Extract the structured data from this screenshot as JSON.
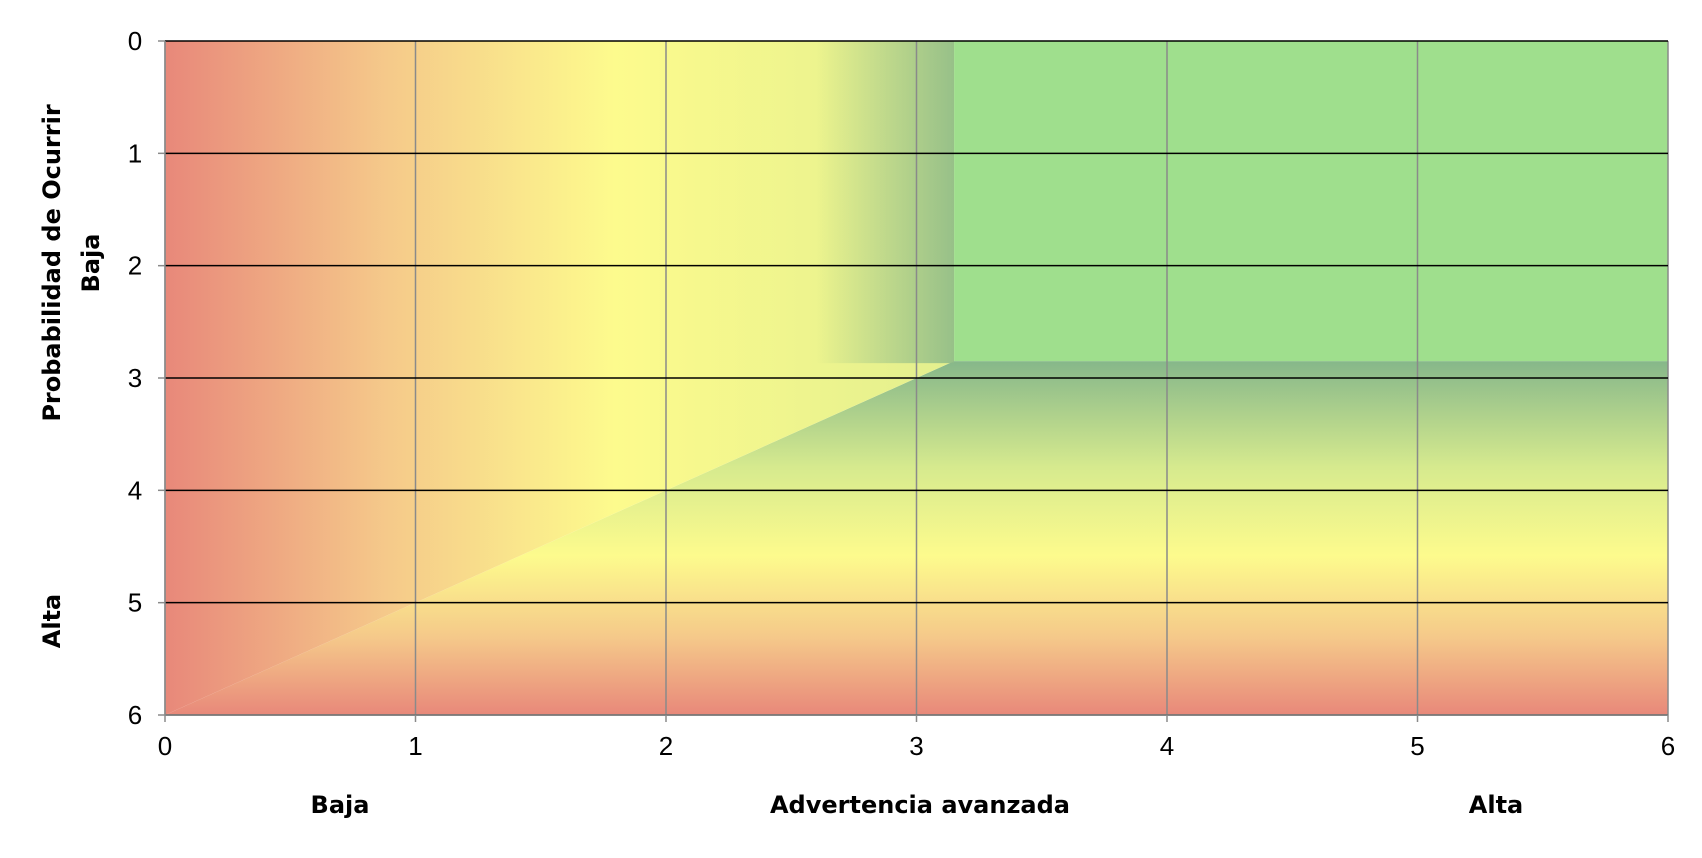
{
  "chart_data": {
    "type": "heatmap",
    "title": "",
    "x_axis": {
      "range": [
        0,
        6
      ],
      "ticks": [
        "0",
        "1",
        "2",
        "3",
        "4",
        "5",
        "6"
      ],
      "labels": {
        "low": "Baja",
        "mid": "Advertencia avanzada",
        "high": "Alta"
      }
    },
    "y_axis": {
      "range": [
        0,
        6
      ],
      "reversed": true,
      "ticks": [
        "0",
        "1",
        "2",
        "3",
        "4",
        "5",
        "6"
      ],
      "title": "Probabilidad de Ocurrir",
      "labels": {
        "low": "Baja",
        "high": "Alta"
      }
    },
    "zones": [
      {
        "color": "#e8887a",
        "meaning": "high risk"
      },
      {
        "color": "#f5c98a",
        "meaning": "elevated risk"
      },
      {
        "color": "#fdfb8d",
        "meaning": "moderate risk"
      },
      {
        "color": "#9fdf8d",
        "meaning": "low risk",
        "x_range": [
          3.15,
          6
        ],
        "y_range": [
          0,
          2.85
        ]
      }
    ],
    "grid": {
      "horizontal": true,
      "vertical": true,
      "horizontal_color": "#000000",
      "vertical_color": "#8a8a8a"
    },
    "legend": "none"
  }
}
